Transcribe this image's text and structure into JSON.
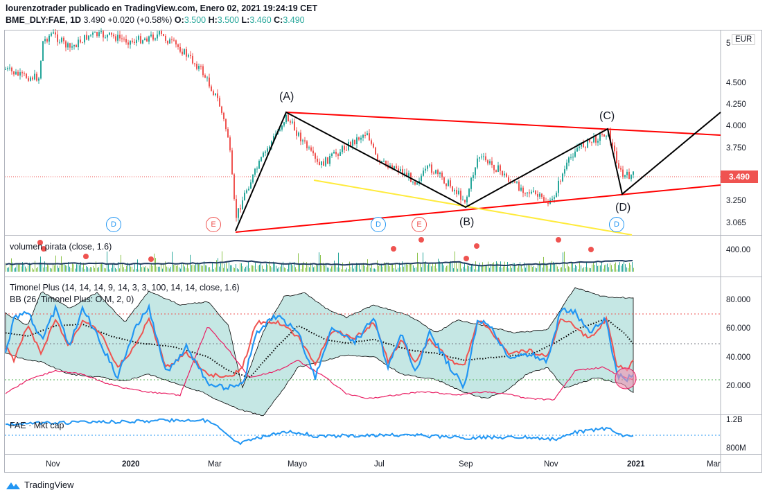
{
  "header": {
    "line1": "lourenzotrader publicado en TradingView.com, Enero 02, 2021 19:24:19 CET",
    "symbol": "BME_DLY:FAE, 1D",
    "last": "3.490",
    "change": "+0.020 (+0.58%)",
    "o_label": "O:",
    "o_value": "3.500",
    "h_label": "H:",
    "h_value": "3.500",
    "l_label": "L:",
    "l_value": "3.460",
    "c_label": "C:",
    "c_value": "3.490"
  },
  "main_pane": {
    "currency": "EUR",
    "price_tag": "3.490",
    "y_ticks": [
      "5",
      "4.500",
      "4.250",
      "4.000",
      "3.750",
      "3.490",
      "3.250",
      "3.065"
    ],
    "wave_labels": {
      "A": "(A)",
      "B": "(B)",
      "C": "(C)",
      "D": "(D)"
    },
    "event_markers": [
      "D",
      "E",
      "D",
      "E",
      "D"
    ]
  },
  "volume_pane": {
    "title": "volumen pirata (close, 1.6)",
    "y_ticks": [
      "400.00"
    ]
  },
  "timonel_pane": {
    "title1": "Timonel Plus (14, 14, 14, 9, 14, 3, 3, 100, 14, 14, close, 1.6)",
    "title2": "BB (26, Timonel Plus: O.M, 2, 0)",
    "y_ticks": [
      "80.000",
      "60.000",
      "40.000",
      "20.000"
    ]
  },
  "mktcap_pane": {
    "title": "FAE · Mkt cap",
    "y_ticks": [
      "1.2B",
      "800M"
    ]
  },
  "x_axis": {
    "labels": [
      "Nov",
      "2020",
      "Mar",
      "Mayo",
      "Jul",
      "Sep",
      "Nov",
      "2021",
      "Mar"
    ]
  },
  "footer": {
    "brand": "TradingView"
  },
  "colors": {
    "up": "#26a69a",
    "down": "#ef5350",
    "trend_red": "#ff0000",
    "trend_yellow": "#ffeb3b",
    "timonel_blue": "#2196f3",
    "bb_fill": "#b2dfdb",
    "mktcap": "#2196f3"
  }
}
